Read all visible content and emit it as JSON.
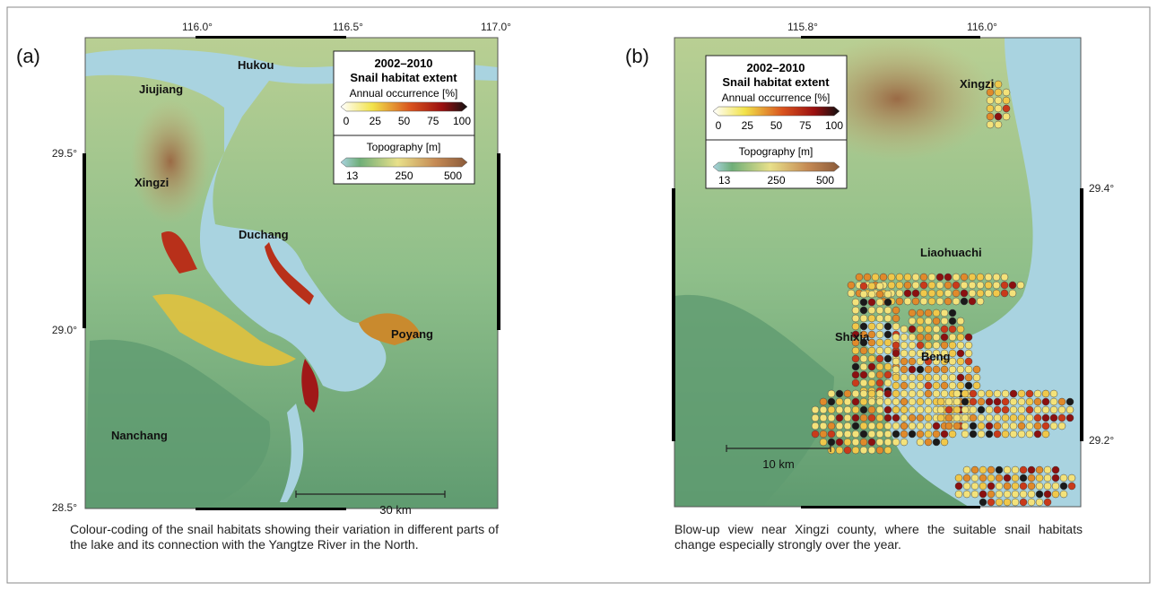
{
  "panels": [
    {
      "label": "(a)",
      "lon_ticks": [
        "116.0°",
        "116.5°",
        "117.0°"
      ],
      "lat_ticks": [
        "29.5°",
        "29.0°",
        "28.5°"
      ],
      "places": [
        "Hukou",
        "Jiujiang",
        "Xingzi",
        "Duchang",
        "Poyang",
        "Nanchang"
      ],
      "legend": {
        "period": "2002–2010",
        "title": "Snail habitat extent",
        "occurrence_label": "Annual occurrence [%]",
        "occurrence_ticks": [
          0,
          25,
          50,
          75,
          100
        ],
        "topo_label": "Topography [m]",
        "topo_ticks": [
          13,
          250,
          500
        ]
      },
      "scale": "30 km",
      "caption": "Colour-coding of the snail habitats showing their variation in different parts of the lake and its connection with the Yangtze River in the North."
    },
    {
      "label": "(b)",
      "lon_ticks": [
        "115.8°",
        "116.0°"
      ],
      "lat_ticks": [
        "29.4°",
        "29.2°"
      ],
      "places": [
        "Xingzi",
        "Liaohuachi",
        "Shixia",
        "Beng"
      ],
      "legend": {
        "period": "2002–2010",
        "title": "Snail habitat extent",
        "occurrence_label": "Annual occurrence [%]",
        "occurrence_ticks": [
          0,
          25,
          50,
          75,
          100
        ],
        "topo_label": "Topography [m]",
        "topo_ticks": [
          13,
          250,
          500
        ]
      },
      "scale": "10 km",
      "caption": "Blow-up view near Xingzi county, where the suitable snail habitats change especially strongly over the year."
    }
  ]
}
